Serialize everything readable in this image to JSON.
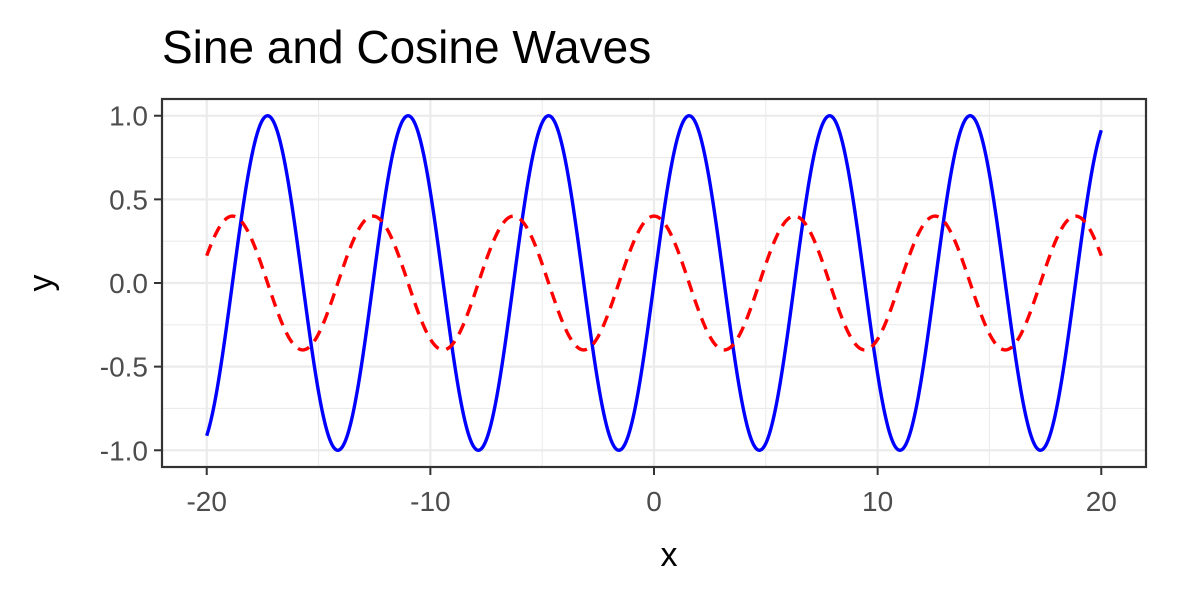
{
  "chart_data": {
    "type": "line",
    "title": "Sine and Cosine Waves",
    "xlabel": "x",
    "ylabel": "y",
    "xlim": [
      -22,
      22
    ],
    "ylim": [
      -1.1,
      1.1
    ],
    "x_ticks": [
      -20,
      -10,
      0,
      10,
      20
    ],
    "x_tick_labels": [
      "-20",
      "-10",
      "0",
      "10",
      "20"
    ],
    "y_ticks": [
      -1.0,
      -0.5,
      0.0,
      0.5,
      1.0
    ],
    "y_tick_labels": [
      "-1.0",
      "-0.5",
      "0.0",
      "0.5",
      "1.0"
    ],
    "x_range": [
      -20,
      20
    ],
    "grid": true,
    "legend": "none",
    "series": [
      {
        "function": "sin(x)",
        "color": "#0000ff",
        "linestyle": "solid",
        "x": [
          -20,
          -18,
          -16,
          -14,
          -12,
          -10,
          -8,
          -6,
          -4,
          -2,
          0,
          2,
          4,
          6,
          8,
          10,
          12,
          14,
          16,
          18,
          20
        ],
        "values": [
          -0.913,
          0.751,
          0.288,
          -0.991,
          0.537,
          0.544,
          -0.989,
          0.279,
          0.757,
          -0.909,
          0.0,
          0.909,
          -0.757,
          -0.279,
          0.989,
          -0.544,
          -0.537,
          0.991,
          -0.288,
          -0.751,
          0.913
        ]
      },
      {
        "function": "0.4*cos(x)",
        "color": "#ff0000",
        "linestyle": "dashed",
        "x": [
          -20,
          -18,
          -16,
          -14,
          -12,
          -10,
          -8,
          -6,
          -4,
          -2,
          0,
          2,
          4,
          6,
          8,
          10,
          12,
          14,
          16,
          18,
          20
        ],
        "values": [
          0.163,
          0.264,
          -0.383,
          0.055,
          0.338,
          -0.336,
          -0.058,
          0.384,
          -0.261,
          -0.166,
          0.4,
          -0.166,
          -0.261,
          0.384,
          -0.058,
          -0.336,
          0.338,
          0.055,
          -0.383,
          0.264,
          0.163
        ]
      }
    ]
  }
}
